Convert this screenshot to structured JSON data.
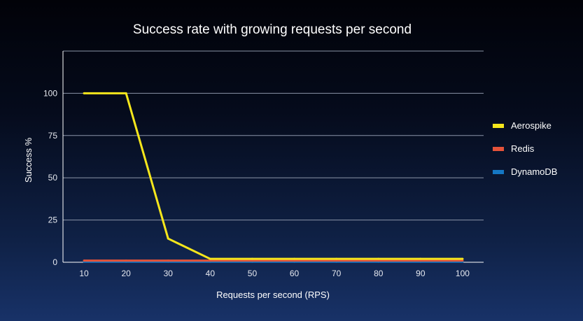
{
  "chart_data": {
    "type": "line",
    "title": "Success rate with growing requests per second",
    "xlabel": "Requests per second (RPS)",
    "ylabel": "Success %",
    "x": [
      10,
      20,
      30,
      40,
      50,
      60,
      70,
      80,
      90,
      100
    ],
    "x_ticks": [
      "10",
      "20",
      "30",
      "40",
      "50",
      "60",
      "70",
      "80",
      "90",
      "100"
    ],
    "y_ticks": [
      "0",
      "25",
      "50",
      "75",
      "100"
    ],
    "ylim": [
      0,
      125
    ],
    "xlim": [
      5,
      105
    ],
    "grid": true,
    "legend_position": "right",
    "series": [
      {
        "name": "Aerospike",
        "color": "#f5e61c",
        "values": [
          100,
          100,
          14,
          2,
          2,
          2,
          2,
          2,
          2,
          2
        ]
      },
      {
        "name": "Redis",
        "color": "#e5533a",
        "values": [
          1,
          1,
          1,
          1,
          1,
          1,
          1,
          1,
          1,
          1
        ]
      },
      {
        "name": "DynamoDB",
        "color": "#1577c4",
        "values": [
          0.3,
          0.3,
          0.3,
          0.3,
          0.3,
          0.3,
          0.3,
          0.3,
          0.3,
          0.3
        ]
      }
    ]
  }
}
